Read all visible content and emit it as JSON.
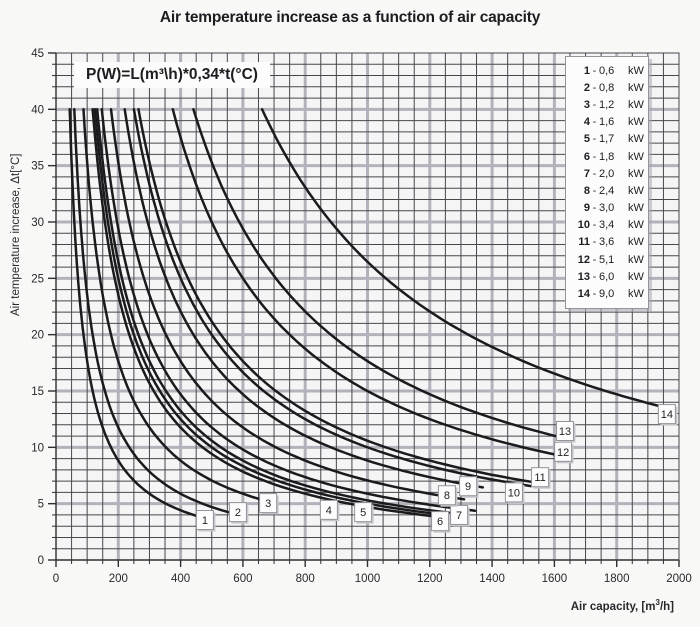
{
  "title": "Air temperature increase as a function of air capacity",
  "formula": "P(W)=L(m³\\h)*0,34*t(°C)",
  "colors": {
    "background": "#f8f8f7",
    "plot_background": "#f5f5f6",
    "grid_minor": "#47474d",
    "grid_major": "#b2b2ba",
    "axis": "#2f2f33",
    "curve": "#1b1b1e",
    "text": "#29292d",
    "badge_fill": "#fdfdfe",
    "badge_border": "#94949a",
    "badge_shadow": "#c6c6cb"
  },
  "axes": {
    "x": {
      "label_prefix": "Air capacity, [m",
      "label_sup": "3",
      "label_suffix": "/h]",
      "min": 0,
      "max": 2000,
      "major_tick": 200,
      "minor_tick": 50
    },
    "y": {
      "label": "Air temperature increase, Δt[°C]",
      "min": 0,
      "max": 45,
      "major_tick": 5,
      "minor_tick": 1
    }
  },
  "chart_data": {
    "type": "line",
    "title": "Air temperature increase as a function of air capacity",
    "xlabel": "Air capacity, [m³/h]",
    "ylabel": "Air temperature increase, Δt[°C]",
    "xlim": [
      0,
      2000
    ],
    "ylim": [
      0,
      45
    ],
    "grid": "on",
    "legend_position": "top-right",
    "model": "Δt(°C) = P(W) / (0.34 · L(m³/h))",
    "curves_start_at_dt": 40,
    "x_ticks": [
      0,
      200,
      400,
      600,
      800,
      1000,
      1200,
      1400,
      1600,
      1800,
      2000
    ],
    "y_ticks": [
      0,
      5,
      10,
      15,
      20,
      25,
      30,
      35,
      40,
      45
    ],
    "series": [
      {
        "id": "1",
        "power_kw": 0.6,
        "power_w": 600,
        "l_end": 490,
        "badge": {
          "l": 478,
          "dt": 3.55
        }
      },
      {
        "id": "2",
        "power_kw": 0.8,
        "power_w": 800,
        "l_end": 600,
        "badge": {
          "l": 584,
          "dt": 4.25
        }
      },
      {
        "id": "3",
        "power_kw": 1.2,
        "power_w": 1200,
        "l_end": 700,
        "badge": {
          "l": 681,
          "dt": 5.05
        }
      },
      {
        "id": "4",
        "power_kw": 1.6,
        "power_w": 1600,
        "l_end": 1280,
        "badge": {
          "l": 876,
          "dt": 4.45
        }
      },
      {
        "id": "5",
        "power_kw": 1.7,
        "power_w": 1700,
        "l_end": 1305,
        "badge": {
          "l": 986,
          "dt": 4.25
        }
      },
      {
        "id": "6",
        "power_kw": 1.8,
        "power_w": 1800,
        "l_end": 1320,
        "badge": {
          "l": 1233,
          "dt": 3.45
        }
      },
      {
        "id": "7",
        "power_kw": 2.0,
        "power_w": 2000,
        "l_end": 1345,
        "badge": {
          "l": 1294,
          "dt": 4.0
        }
      },
      {
        "id": "8",
        "power_kw": 2.4,
        "power_w": 2400,
        "l_end": 1310,
        "badge": {
          "l": 1255,
          "dt": 5.75
        }
      },
      {
        "id": "9",
        "power_kw": 3.0,
        "power_w": 3000,
        "l_end": 1370,
        "badge": {
          "l": 1323,
          "dt": 6.55
        }
      },
      {
        "id": "10",
        "power_kw": 3.4,
        "power_w": 3400,
        "l_end": 1525,
        "badge": {
          "l": 1470,
          "dt": 6.0
        }
      },
      {
        "id": "11",
        "power_kw": 3.6,
        "power_w": 3600,
        "l_end": 1560,
        "badge": {
          "l": 1554,
          "dt": 7.35
        }
      },
      {
        "id": "12",
        "power_kw": 5.1,
        "power_w": 5100,
        "l_end": 1610,
        "badge": {
          "l": 1628,
          "dt": 9.6
        }
      },
      {
        "id": "13",
        "power_kw": 6.0,
        "power_w": 6000,
        "l_end": 1620,
        "badge": {
          "l": 1634,
          "dt": 11.45
        }
      },
      {
        "id": "14",
        "power_kw": 9.0,
        "power_w": 9000,
        "l_end": 1950,
        "badge": {
          "l": 1961,
          "dt": 12.95
        }
      }
    ]
  },
  "legend": {
    "items": [
      {
        "num": "1",
        "value": "0,6",
        "unit": "kW"
      },
      {
        "num": "2",
        "value": "0,8",
        "unit": "kW"
      },
      {
        "num": "3",
        "value": "1,2",
        "unit": "kW"
      },
      {
        "num": "4",
        "value": "1,6",
        "unit": "kW"
      },
      {
        "num": "5",
        "value": "1,7",
        "unit": "kW"
      },
      {
        "num": "6",
        "value": "1,8",
        "unit": "kW"
      },
      {
        "num": "7",
        "value": "2,0",
        "unit": "kW"
      },
      {
        "num": "8",
        "value": "2,4",
        "unit": "kW"
      },
      {
        "num": "9",
        "value": "3,0",
        "unit": "kW"
      },
      {
        "num": "10",
        "value": "3,4",
        "unit": "kW"
      },
      {
        "num": "11",
        "value": "3,6",
        "unit": "kW"
      },
      {
        "num": "12",
        "value": "5,1",
        "unit": "kW"
      },
      {
        "num": "13",
        "value": "6,0",
        "unit": "kW"
      },
      {
        "num": "14",
        "value": "9,0",
        "unit": "kW"
      }
    ]
  }
}
